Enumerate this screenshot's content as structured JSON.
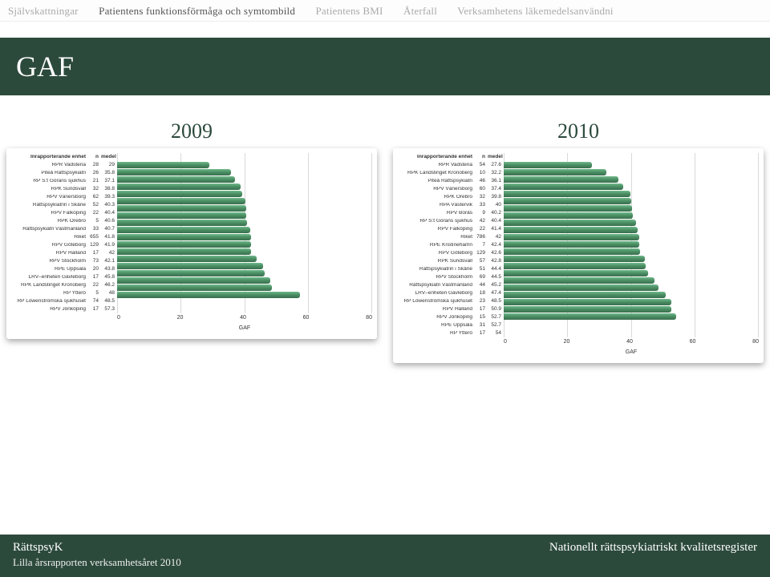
{
  "tabs": {
    "items": [
      {
        "label": "Självskattningar",
        "active": false
      },
      {
        "label": "Patientens funktionsförmåga och symtombild",
        "active": true
      },
      {
        "label": "Patientens BMI",
        "active": false
      },
      {
        "label": "Återfall",
        "active": false
      },
      {
        "label": "Verksamhetens läkemedelsanvändni",
        "active": false
      }
    ]
  },
  "page_title": "GAF",
  "colors": {
    "brand": "#2c4a3c",
    "bar_gradient_top": "#6fb88a",
    "bar_gradient_mid": "#4a8d63",
    "bar_gradient_bot": "#3a6f4e",
    "grid": "rgba(0,0,0,0.15)"
  },
  "charts": {
    "left": {
      "title": "2009",
      "xlabel": "GAF",
      "xmax": 80,
      "xticks": [
        0,
        20,
        40,
        60,
        80
      ],
      "headers": {
        "name": "Inrapporterande enhet",
        "n": "n",
        "m": "medel"
      },
      "rows": [
        {
          "name": "RPR Vadstena",
          "n": 28,
          "m": 29
        },
        {
          "name": "Piteå Rättspsykiatri",
          "n": 26,
          "m": 35.8
        },
        {
          "name": "RP S:t Görans sjukhus",
          "n": 21,
          "m": 37.1
        },
        {
          "name": "RPK Sundsvall",
          "n": 32,
          "m": 38.8
        },
        {
          "name": "RPV Vänersborg",
          "n": 62,
          "m": 39.3
        },
        {
          "name": "Rättspsykiatrin i Skåne",
          "n": 52,
          "m": 40.3
        },
        {
          "name": "RPV Falköping",
          "n": 22,
          "m": 40.4
        },
        {
          "name": "RPK Örebro",
          "n": 5,
          "m": 40.6
        },
        {
          "name": "Rättspsykiatri Västmanland",
          "n": 33,
          "m": 40.7
        },
        {
          "name": "Riket",
          "n": 655,
          "m": 41.8
        },
        {
          "name": "RPV Göteborg",
          "n": 129,
          "m": 41.9
        },
        {
          "name": "RPV Halland",
          "n": 17,
          "m": 42
        },
        {
          "name": "RPV Stockholm",
          "n": 73,
          "m": 42.1
        },
        {
          "name": "RPE Uppsala",
          "n": 20,
          "m": 43.8
        },
        {
          "name": "LRV–enheten Gävleborg",
          "n": 17,
          "m": 45.8
        },
        {
          "name": "RPK Landstinget Kronoberg",
          "n": 22,
          "m": 46.2
        },
        {
          "name": "RP Ytterö",
          "n": 5,
          "m": 48
        },
        {
          "name": "RP Löwenströmska sjukhuset",
          "n": 74,
          "m": 48.5
        },
        {
          "name": "RPV Jönköping",
          "n": 17,
          "m": 57.3
        }
      ]
    },
    "right": {
      "title": "2010",
      "xlabel": "GAF",
      "xmax": 80,
      "xticks": [
        0,
        20,
        40,
        60,
        80
      ],
      "headers": {
        "name": "Inrapporterande enhet",
        "n": "n",
        "m": "medel"
      },
      "rows": [
        {
          "name": "RPR Vadstena",
          "n": 54,
          "m": 27.6
        },
        {
          "name": "RPK Landstinget Kronoberg",
          "n": 10,
          "m": 32.2
        },
        {
          "name": "Piteå Rättspsykiatri",
          "n": 46,
          "m": 36.1
        },
        {
          "name": "RPV Vänersborg",
          "n": 60,
          "m": 37.4
        },
        {
          "name": "RPK Örebro",
          "n": 32,
          "m": 39.8
        },
        {
          "name": "RPA Västervik",
          "n": 33,
          "m": 40
        },
        {
          "name": "RPV Borås",
          "n": 9,
          "m": 40.2
        },
        {
          "name": "RP S:t Görans sjukhus",
          "n": 42,
          "m": 40.4
        },
        {
          "name": "RPV Falköping",
          "n": 22,
          "m": 41.4
        },
        {
          "name": "Riket",
          "n": 786,
          "m": 42
        },
        {
          "name": "RPE Kristinehamn",
          "n": 7,
          "m": 42.4
        },
        {
          "name": "RPV Göteborg",
          "n": 129,
          "m": 42.6
        },
        {
          "name": "RPK Sundsvall",
          "n": 57,
          "m": 42.8
        },
        {
          "name": "Rättspsykiatrin i Skåne",
          "n": 51,
          "m": 44.4
        },
        {
          "name": "RPV Stockholm",
          "n": 69,
          "m": 44.5
        },
        {
          "name": "Rättspsykiatri Västmanland",
          "n": 44,
          "m": 45.2
        },
        {
          "name": "LRV–enheten Gävleborg",
          "n": 18,
          "m": 47.4
        },
        {
          "name": "RP Löwenströmska sjukhuset",
          "n": 23,
          "m": 48.5
        },
        {
          "name": "RPV Halland",
          "n": 17,
          "m": 50.9
        },
        {
          "name": "RPV Jönköping",
          "n": 15,
          "m": 52.7
        },
        {
          "name": "RPE Uppsala",
          "n": 31,
          "m": 52.7
        },
        {
          "name": "RP Ytterö",
          "n": 17,
          "m": 54
        }
      ]
    }
  },
  "footer": {
    "left": "RättspsyK",
    "right": "Nationellt rättspsykiatriskt kvalitetsregister",
    "sub": "Lilla årsrapporten verksamhetsåret 2010"
  }
}
